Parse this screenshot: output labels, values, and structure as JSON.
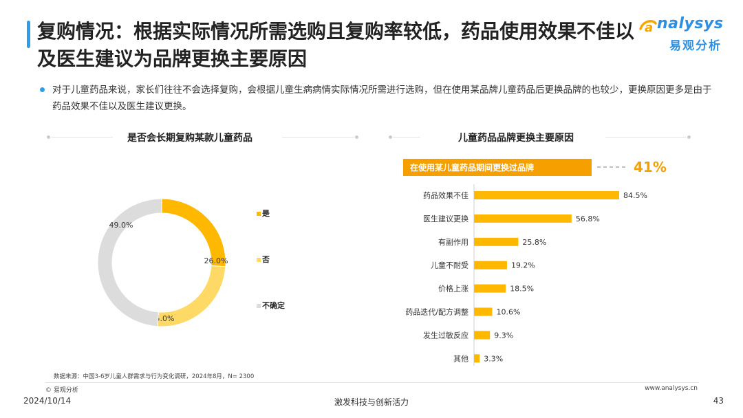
{
  "header": {
    "title": "复购情况：根据实际情况所需选购且复购率较低，药品使用效果不佳以及医生建议为品牌更换主要原因",
    "logo_main": "nalysys",
    "logo_sub": "易观分析"
  },
  "summary": {
    "text": "对于儿童药品来说，家长们往往不会选择复购，会根据儿童生病病情实际情况所需进行选购，但在使用某品牌儿童药品后更换品牌的也较少，更换原因更多是由于药品效果不佳以及医生建议更换。"
  },
  "colors": {
    "accent_blue": "#2e9fe6",
    "yes": "#ffb800",
    "no": "#ffd966",
    "unsure": "#dcdcdc",
    "bar": "#ffb800",
    "highlight_box": "#f5a000",
    "highlight_value": "#f5a000"
  },
  "chart_data": [
    {
      "type": "pie",
      "title": "是否会长期复购某款儿童药品",
      "categories": [
        "是",
        "否",
        "不确定"
      ],
      "values": [
        26.0,
        25.0,
        49.0
      ],
      "value_labels": [
        "26.0%",
        "25.0%",
        "49.0%"
      ],
      "donut": true,
      "legend": "right"
    },
    {
      "type": "bar",
      "orientation": "horizontal",
      "title": "儿童药品品牌更换主要原因",
      "highlight": {
        "label": "在使用某儿童药品期间更换过品牌",
        "value_label": "41%",
        "value": 41
      },
      "categories": [
        "药品效果不佳",
        "医生建议更换",
        "有副作用",
        "儿童不耐受",
        "价格上涨",
        "药品迭代/配方调整",
        "发生过敏反应",
        "其他"
      ],
      "values": [
        84.5,
        56.8,
        25.8,
        19.2,
        18.5,
        10.6,
        9.3,
        3.3
      ],
      "value_labels": [
        "84.5%",
        "56.8%",
        "25.8%",
        "19.2%",
        "18.5%",
        "10.6%",
        "9.3%",
        "3.3%"
      ],
      "xlim": [
        0,
        100
      ],
      "grid": false
    }
  ],
  "footer": {
    "source": "数据来源：中国3-6岁儿童人群需求与行为变化调研，2024年8月，N= 2300",
    "copyright": "© 易观分析",
    "url": "www.analysys.cn",
    "date": "2024/10/14",
    "slogan": "激发科技与创新活力",
    "page": "43"
  }
}
